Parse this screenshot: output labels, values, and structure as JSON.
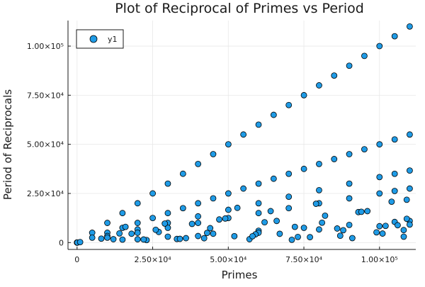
{
  "chart_data": {
    "type": "scatter",
    "title": "Plot of Reciprocal of Primes vs Period",
    "xlabel": "Primes",
    "ylabel": "Period of Reciprocals",
    "xlim": [
      -3000,
      112000
    ],
    "ylim": [
      -3500,
      113000
    ],
    "grid": true,
    "legend_position": "top-left",
    "marker_color": "#1f9be6",
    "marker_edge_color": "#000000",
    "x_ticks": [
      {
        "value": 0,
        "label": "0"
      },
      {
        "value": 25000,
        "label": "2.50×10⁴"
      },
      {
        "value": 50000,
        "label": "5.00×10⁴"
      },
      {
        "value": 75000,
        "label": "7.50×10⁴"
      },
      {
        "value": 100000,
        "label": "1.00×10⁵"
      }
    ],
    "y_ticks": [
      {
        "value": 0,
        "label": "0"
      },
      {
        "value": 25000,
        "label": "2.50×10⁴"
      },
      {
        "value": 50000,
        "label": "5.00×10⁴"
      },
      {
        "value": 75000,
        "label": "7.50×10⁴"
      },
      {
        "value": 100000,
        "label": "1.00×10⁵"
      }
    ],
    "series": [
      {
        "name": "y1",
        "x": [
          3,
          7,
          11,
          13,
          17,
          101,
          1009,
          5003,
          10007,
          15013,
          20011,
          25013,
          30011,
          35023,
          40009,
          45007,
          50021,
          55001,
          60013,
          65003,
          70001,
          75011,
          80021,
          85009,
          90001,
          95003,
          100003,
          105019,
          109987,
          5003,
          10007,
          15013,
          20011,
          25013,
          30011,
          35023,
          40009,
          45007,
          50021,
          55001,
          60013,
          65003,
          70001,
          75011,
          80021,
          85009,
          90001,
          95003,
          100003,
          105019,
          109987,
          10007,
          20011,
          30011,
          40009,
          50021,
          60013,
          70001,
          80021,
          90001,
          100003,
          105019,
          109987,
          10007,
          20011,
          30011,
          40009,
          50021,
          60013,
          70001,
          80021,
          90001,
          100003,
          105019,
          109987,
          15013,
          30011,
          45007,
          60013,
          75011,
          90001,
          105019,
          109987,
          20011,
          40009,
          60013,
          80021,
          100003,
          109987,
          12007,
          18013,
          23003,
          27011,
          33013,
          38011,
          42013,
          47017,
          52009,
          57013,
          62003,
          67003,
          72019,
          77003,
          82003,
          86011,
          91009,
          96001,
          101009,
          106013,
          108013,
          109013,
          14009,
          22003,
          29009,
          36007,
          44017,
          53003,
          59009,
          66001,
          73009,
          79003,
          87011,
          93001,
          99013,
          104003,
          107999,
          8009,
          16007,
          26003,
          34019,
          43003,
          49003,
          58013,
          64007,
          71011,
          81001,
          88007,
          94009,
          102013,
          109001
        ],
        "y": [
          1,
          6,
          2,
          6,
          16,
          4,
          252,
          5002,
          10006,
          15012,
          20010,
          25012,
          30010,
          35022,
          40008,
          45006,
          50020,
          55000,
          60012,
          65002,
          70000,
          75010,
          80020,
          85008,
          90000,
          95002,
          100002,
          105018,
          109986,
          2501,
          5003,
          7506,
          10005,
          12506,
          15005,
          17511,
          20004,
          22503,
          25010,
          27500,
          30006,
          32501,
          35000,
          37505,
          40010,
          42504,
          45000,
          47501,
          50001,
          52509,
          54993,
          3335,
          6670,
          10003,
          13336,
          16673,
          20004,
          23333,
          26673,
          30000,
          33334,
          35006,
          36662,
          2501,
          5002,
          7502,
          10002,
          12505,
          15003,
          17500,
          20005,
          22500,
          25000,
          26254,
          27496,
          1501,
          3001,
          4500,
          6001,
          7501,
          9000,
          10501,
          10998,
          1667,
          3334,
          5001,
          6668,
          8333,
          9165,
          1715,
          4503,
          1277,
          5402,
          1834,
          9502,
          2210,
          11754,
          3250,
          1710,
          10333,
          4466,
          8002,
          2750,
          13667,
          7167,
          2275,
          16000,
          4590,
          8834,
          3000,
          12112,
          4669,
          1573,
          9669,
          2250,
          7336,
          17667,
          4215,
          11000,
          2866,
          19750,
          3480,
          15500,
          5210,
          20800,
          6352,
          2002,
          8003,
          6500,
          1889,
          4914,
          12250,
          3222,
          16001,
          1420,
          10125,
          6286,
          15667,
          8501,
          21800
        ]
      }
    ]
  }
}
